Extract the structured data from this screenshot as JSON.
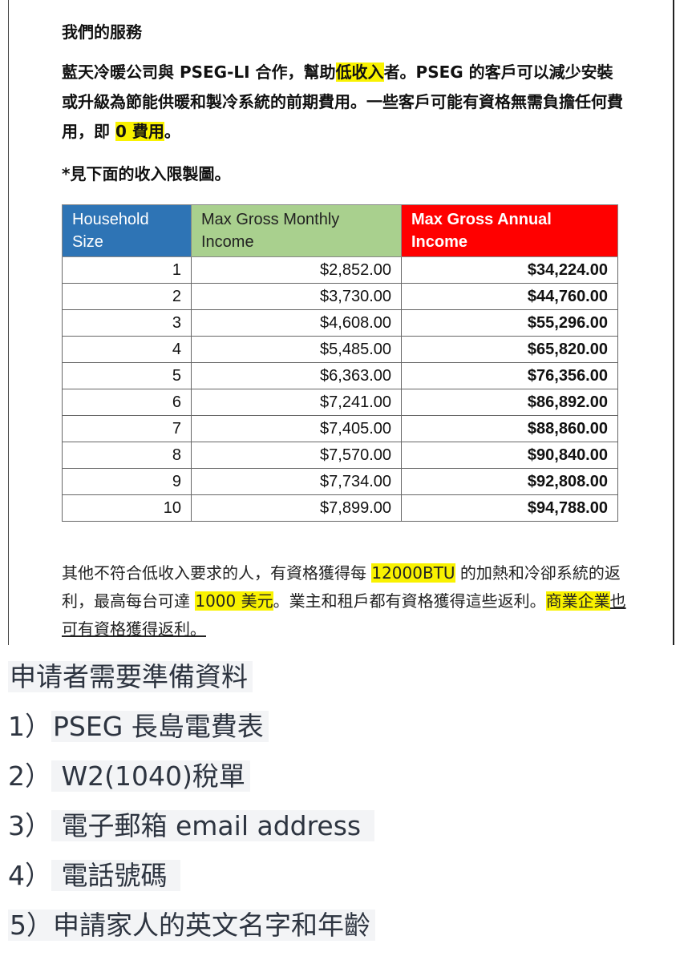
{
  "heading": "我們的服務",
  "intro": {
    "a": "藍天冷暖公司與 PSEG-LI 合作，幫助",
    "hl1": "低收入",
    "b": "者。PSEG 的客戶可以減少安裝或升級為節能供暖和製冷系統的前期費用。一些客戶可能有資格無需負擔任何費用，即 ",
    "hl2": "0 費用",
    "c": "。"
  },
  "note": "*見下面的收入限製圖。",
  "table": {
    "headers": [
      "Household Size",
      "Max Gross Monthly Income",
      "Max Gross Annual Income"
    ],
    "header_colors": [
      "#2e74b5",
      "#a9d08e",
      "#ff0000"
    ],
    "rows": [
      [
        "1",
        "$2,852.00",
        "$34,224.00"
      ],
      [
        "2",
        "$3,730.00",
        "$44,760.00"
      ],
      [
        "3",
        "$4,608.00",
        "$55,296.00"
      ],
      [
        "4",
        "$5,485.00",
        "$65,820.00"
      ],
      [
        "5",
        "$6,363.00",
        "$76,356.00"
      ],
      [
        "6",
        "$7,241.00",
        "$86,892.00"
      ],
      [
        "7",
        "$7,405.00",
        "$88,860.00"
      ],
      [
        "8",
        "$7,570.00",
        "$90,840.00"
      ],
      [
        "9",
        "$7,734.00",
        "$92,808.00"
      ],
      [
        "10",
        "$7,899.00",
        "$94,788.00"
      ]
    ]
  },
  "rebate": {
    "a": "其他不符合低收入要求的人，有資格獲得每 ",
    "hl1": "12000BTU",
    "b": " 的加熱和冷卻系統的返利，最高每台可達 ",
    "hl2": "1000 美元",
    "c": "。業主和租戶都有資格獲得這些返利。",
    "hl3": "商業企業",
    "d": "也可有資格獲得返利。"
  },
  "checklist": {
    "title": "申请者需要準備資料",
    "items": [
      {
        "num": "1）",
        "text": "PSEG 長島電費表"
      },
      {
        "num": "2）",
        "text": " W2(1040)稅單"
      },
      {
        "num": "3）",
        "text": " 電子郵箱 email address "
      },
      {
        "num": "4）",
        "text": " 電話號碼 "
      },
      {
        "num": "5）",
        "text": "申請家人的英文名字和年齡 "
      }
    ]
  },
  "highlight_color": "#f9f200"
}
